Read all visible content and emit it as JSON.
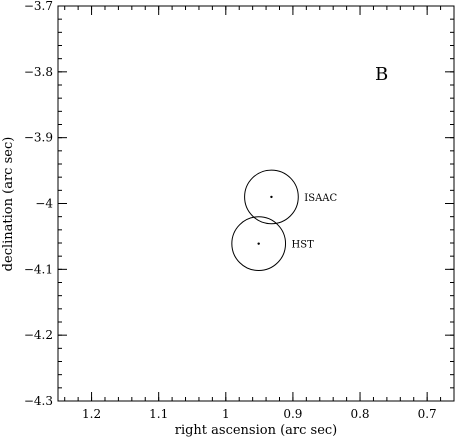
{
  "chart_data": {
    "type": "scatter",
    "panel_label": "B",
    "xlabel": "right ascension (arc sec)",
    "ylabel": "declination (arc sec)",
    "xlim": [
      1.25,
      0.66
    ],
    "ylim": [
      -4.3,
      -3.7
    ],
    "x_inverted": true,
    "x_ticks": [
      1.2,
      1.1,
      1.0,
      0.9,
      0.8,
      0.7
    ],
    "x_tick_labels": [
      "1.2",
      "1.1",
      "1",
      "0.9",
      "0.8",
      "0.7"
    ],
    "y_ticks": [
      -3.7,
      -3.8,
      -3.9,
      -4.0,
      -4.1,
      -4.2,
      -4.3
    ],
    "y_tick_labels": [
      "−3.7",
      "−3.8",
      "−3.9",
      "−4",
      "−4.1",
      "−4.2",
      "−4.3"
    ],
    "grid": false,
    "points": [
      {
        "label": "ISAAC",
        "x": 0.932,
        "y": -3.99,
        "error_radius": 0.04
      },
      {
        "label": "HST",
        "x": 0.951,
        "y": -4.061,
        "error_radius": 0.04
      }
    ]
  }
}
